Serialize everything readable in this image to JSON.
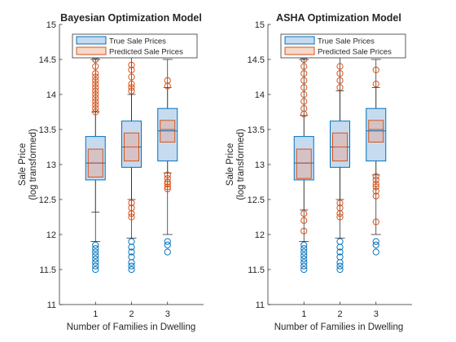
{
  "colors": {
    "true_edge": "#0072BD",
    "true_fill": "#C6DBEF",
    "pred_edge": "#D95319",
    "pred_fill": "#F7D9C9",
    "pred_median": "#D95319",
    "true_median": "#0072BD",
    "overlap_fill": "#D4C2C6",
    "axis": "#262626",
    "whisker": "#262626"
  },
  "chart_data": [
    {
      "type": "boxplot",
      "title": "Bayesian Optimization Model",
      "xlabel": "Number of Families in Dwelling",
      "ylabel_lines": [
        "Sale Price",
        "(log transformed)"
      ],
      "categories": [
        "1",
        "2",
        "3"
      ],
      "ylim": [
        11,
        15
      ],
      "yticks": [
        "11",
        "11.5",
        "12",
        "12.5",
        "13",
        "13.5",
        "14",
        "14.5",
        "15"
      ],
      "legend": [
        "True Sale Prices",
        "Predicted Sale Prices"
      ],
      "legend_position": "top",
      "series": [
        {
          "name": "True Sale Prices",
          "boxes": [
            {
              "category": "1",
              "q1": 12.78,
              "median": 13.02,
              "q3": 13.4,
              "whisker_low": 11.9,
              "whisker_high": 14.5,
              "outliers": [
                11.5,
                11.55,
                11.6,
                11.65,
                11.7,
                11.75,
                11.8,
                11.85,
                14.5,
                14.55,
                14.6
              ]
            },
            {
              "category": "2",
              "q1": 12.96,
              "median": 13.25,
              "q3": 13.62,
              "whisker_low": 11.95,
              "whisker_high": 14.55,
              "outliers": [
                11.5,
                11.55,
                11.6,
                11.68,
                11.75,
                11.82,
                11.9
              ]
            },
            {
              "category": "3",
              "q1": 13.05,
              "median": 13.48,
              "q3": 13.8,
              "whisker_low": 12.0,
              "whisker_high": 14.5,
              "outliers": [
                11.75,
                11.85,
                11.9
              ]
            }
          ]
        },
        {
          "name": "Predicted Sale Prices",
          "boxes": [
            {
              "category": "1",
              "q1": 12.82,
              "median": 13.02,
              "q3": 13.22,
              "whisker_low": 12.32,
              "whisker_high": 13.75,
              "outliers": [
                13.75,
                13.8,
                13.85,
                13.9,
                13.95,
                14.0,
                14.05,
                14.1,
                14.15,
                14.2,
                14.25,
                14.3,
                14.4,
                14.5
              ]
            },
            {
              "category": "2",
              "q1": 13.05,
              "median": 13.25,
              "q3": 13.45,
              "whisker_low": 12.5,
              "whisker_high": 14.0,
              "outliers": [
                12.25,
                12.3,
                12.38,
                12.45,
                14.05,
                14.1,
                14.15,
                14.25,
                14.35,
                14.42
              ]
            },
            {
              "category": "3",
              "q1": 13.32,
              "median": 13.5,
              "q3": 13.63,
              "whisker_low": 12.88,
              "whisker_high": 14.1,
              "outliers": [
                12.65,
                12.68,
                12.72,
                12.75,
                12.8,
                12.85,
                14.12,
                14.2
              ]
            }
          ]
        }
      ]
    },
    {
      "type": "boxplot",
      "title": "ASHA Optimization Model",
      "xlabel": "Number of Families in Dwelling",
      "ylabel_lines": [
        "Sale Price",
        "(log transformed)"
      ],
      "categories": [
        "1",
        "2",
        "3"
      ],
      "ylim": [
        11,
        15
      ],
      "yticks": [
        "11",
        "11.5",
        "12",
        "12.5",
        "13",
        "13.5",
        "14",
        "14.5",
        "15"
      ],
      "legend": [
        "True Sale Prices",
        "Predicted Sale Prices"
      ],
      "legend_position": "top",
      "series": [
        {
          "name": "True Sale Prices",
          "boxes": [
            {
              "category": "1",
              "q1": 12.78,
              "median": 13.02,
              "q3": 13.4,
              "whisker_low": 11.9,
              "whisker_high": 14.5,
              "outliers": [
                11.5,
                11.55,
                11.6,
                11.65,
                11.7,
                11.75,
                11.8,
                11.85,
                14.5,
                14.55,
                14.6
              ]
            },
            {
              "category": "2",
              "q1": 12.96,
              "median": 13.25,
              "q3": 13.62,
              "whisker_low": 11.95,
              "whisker_high": 14.55,
              "outliers": [
                11.5,
                11.55,
                11.6,
                11.68,
                11.75,
                11.82,
                11.9
              ]
            },
            {
              "category": "3",
              "q1": 13.05,
              "median": 13.48,
              "q3": 13.8,
              "whisker_low": 12.0,
              "whisker_high": 14.5,
              "outliers": [
                11.75,
                11.85,
                11.9
              ]
            }
          ]
        },
        {
          "name": "Predicted Sale Prices",
          "boxes": [
            {
              "category": "1",
              "q1": 12.8,
              "median": 13.02,
              "q3": 13.22,
              "whisker_low": 12.35,
              "whisker_high": 13.7,
              "outliers": [
                12.05,
                12.2,
                12.3,
                13.72,
                13.8,
                13.9,
                14.0,
                14.1,
                14.2,
                14.3,
                14.4,
                14.5,
                14.6
              ]
            },
            {
              "category": "2",
              "q1": 13.05,
              "median": 13.25,
              "q3": 13.45,
              "whisker_low": 12.5,
              "whisker_high": 14.05,
              "outliers": [
                12.25,
                12.3,
                12.38,
                12.45,
                14.1,
                14.2,
                14.3,
                14.4
              ]
            },
            {
              "category": "3",
              "q1": 13.32,
              "median": 13.5,
              "q3": 13.63,
              "whisker_low": 12.85,
              "whisker_high": 14.1,
              "outliers": [
                12.18,
                12.55,
                12.62,
                12.68,
                12.72,
                12.78,
                12.83,
                14.15,
                14.35
              ]
            }
          ]
        }
      ]
    }
  ]
}
